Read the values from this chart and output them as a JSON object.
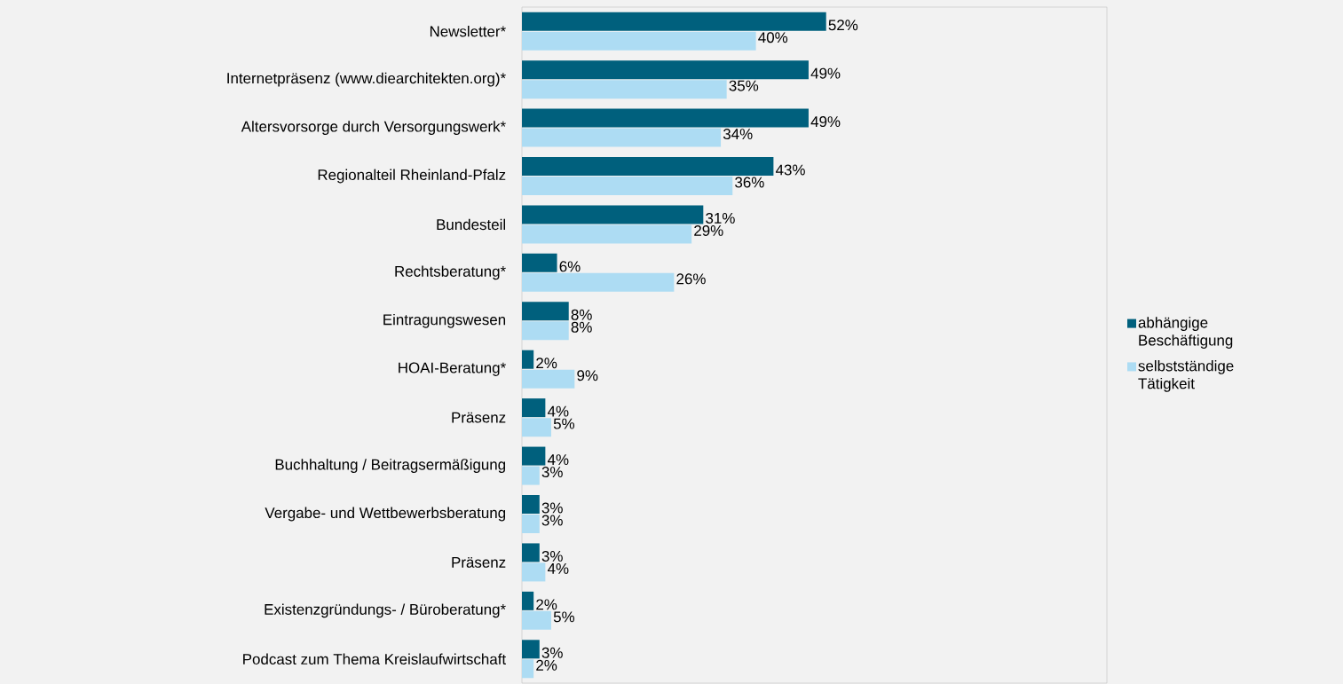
{
  "chart_data": {
    "type": "bar",
    "orientation": "horizontal",
    "categories": [
      "Newsletter*",
      "Internetpräsenz (www.diearchitekten.org)*",
      "Altersvorsorge durch Versorgungswerk*",
      "Regionalteil Rheinland-Pfalz",
      "Bundesteil",
      "Rechtsberatung*",
      "Eintragungswesen",
      "HOAI-Beratung*",
      "Präsenz",
      "Buchhaltung / Beitragsermäßigung",
      "Vergabe- und Wettbewerbsberatung",
      "Präsenz",
      "Existenzgründungs- / Büroberatung*",
      "Podcast zum Thema Kreislaufwirtschaft"
    ],
    "series": [
      {
        "name": "abhängige Beschäftigung",
        "color": "#00607d",
        "values": [
          52,
          49,
          49,
          43,
          31,
          6,
          8,
          2,
          4,
          4,
          3,
          3,
          2,
          3
        ],
        "value_labels": [
          "52%",
          "49%",
          "49%",
          "43%",
          "31%",
          "6%",
          "8%",
          "2%",
          "4%",
          "4%",
          "3%",
          "3%",
          "2%",
          "3%"
        ]
      },
      {
        "name": "selbstständige Tätigkeit",
        "color": "#addcf3",
        "values": [
          40,
          35,
          34,
          36,
          29,
          26,
          8,
          9,
          5,
          3,
          3,
          4,
          5,
          2
        ],
        "value_labels": [
          "40%",
          "35%",
          "34%",
          "36%",
          "29%",
          "26%",
          "8%",
          "9%",
          "5%",
          "3%",
          "3%",
          "4%",
          "5%",
          "2%"
        ]
      }
    ],
    "xlim": [
      0,
      100
    ],
    "legend": "right",
    "grid": false
  }
}
